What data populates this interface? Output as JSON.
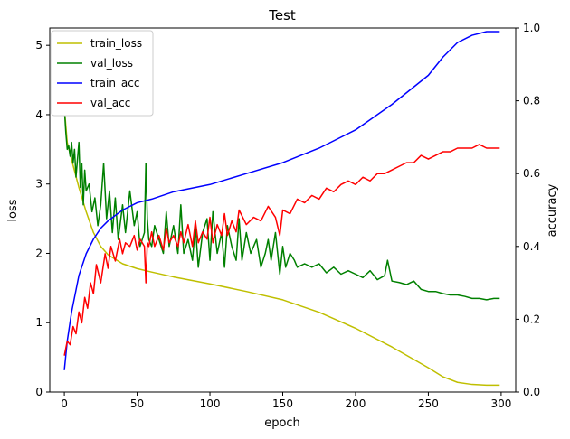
{
  "chart_data": {
    "type": "line",
    "title": "Test",
    "xlabel": "epoch",
    "ylabel": "loss",
    "y2label": "accuracy",
    "xlim": [
      -10,
      310
    ],
    "ylim": [
      0,
      5.25
    ],
    "y2lim": [
      0,
      1.0
    ],
    "xticks": [
      0,
      50,
      100,
      150,
      200,
      250,
      300
    ],
    "yticks": [
      0,
      1,
      2,
      3,
      4,
      5
    ],
    "y2ticks": [
      0.0,
      0.2,
      0.4,
      0.6,
      0.8,
      1.0
    ],
    "x_tick_labels": [
      "0",
      "50",
      "100",
      "150",
      "200",
      "250",
      "300"
    ],
    "y_tick_labels": [
      "0",
      "1",
      "2",
      "3",
      "4",
      "5"
    ],
    "y2_tick_labels": [
      "0.0",
      "0.2",
      "0.4",
      "0.6",
      "0.8",
      "1.0"
    ],
    "grid": false,
    "legend_position": "top-left",
    "series": [
      {
        "name": "train_loss",
        "axis": "left",
        "color": "#bfbf00",
        "x": [
          0,
          2,
          5,
          10,
          15,
          20,
          25,
          30,
          40,
          50,
          60,
          75,
          100,
          125,
          150,
          175,
          200,
          225,
          250,
          260,
          270,
          280,
          290,
          299
        ],
        "values": [
          4.1,
          3.6,
          3.35,
          2.95,
          2.6,
          2.3,
          2.1,
          1.98,
          1.85,
          1.78,
          1.73,
          1.66,
          1.56,
          1.45,
          1.33,
          1.15,
          0.92,
          0.65,
          0.35,
          0.22,
          0.14,
          0.11,
          0.1,
          0.1
        ]
      },
      {
        "name": "val_loss",
        "axis": "left",
        "color": "#008000",
        "x": [
          0,
          1,
          2,
          3,
          4,
          5,
          6,
          7,
          8,
          9,
          10,
          11,
          12,
          13,
          14,
          15,
          17,
          19,
          21,
          23,
          25,
          27,
          29,
          31,
          33,
          35,
          37,
          40,
          42,
          45,
          48,
          50,
          52,
          55,
          56,
          57,
          58,
          60,
          62,
          65,
          68,
          70,
          72,
          75,
          78,
          80,
          82,
          85,
          88,
          90,
          92,
          95,
          98,
          100,
          102,
          105,
          108,
          110,
          112,
          115,
          118,
          120,
          122,
          125,
          128,
          130,
          132,
          135,
          138,
          140,
          142,
          145,
          148,
          150,
          152,
          155,
          158,
          160,
          165,
          170,
          175,
          180,
          185,
          190,
          195,
          200,
          205,
          210,
          215,
          220,
          222,
          225,
          230,
          235,
          240,
          245,
          250,
          255,
          260,
          265,
          270,
          275,
          280,
          285,
          290,
          295,
          299
        ],
        "values": [
          4.1,
          3.75,
          3.5,
          3.55,
          3.4,
          3.6,
          3.3,
          3.5,
          3.1,
          3.35,
          3.6,
          2.95,
          3.3,
          2.7,
          3.2,
          2.9,
          3.0,
          2.6,
          2.8,
          2.4,
          2.7,
          3.3,
          2.5,
          2.9,
          2.3,
          2.8,
          2.2,
          2.7,
          2.3,
          2.9,
          2.4,
          2.6,
          2.1,
          2.3,
          3.3,
          2.5,
          2.2,
          2.1,
          2.4,
          2.2,
          2.0,
          2.6,
          2.1,
          2.4,
          2.0,
          2.7,
          2.0,
          2.2,
          1.9,
          2.4,
          1.8,
          2.3,
          2.5,
          1.9,
          2.6,
          2.0,
          2.3,
          1.8,
          2.4,
          2.1,
          1.9,
          2.5,
          1.9,
          2.3,
          2.0,
          2.1,
          2.2,
          1.8,
          2.0,
          2.2,
          1.9,
          2.3,
          1.7,
          2.1,
          1.8,
          2.0,
          1.9,
          1.8,
          1.85,
          1.8,
          1.85,
          1.72,
          1.8,
          1.7,
          1.75,
          1.7,
          1.65,
          1.75,
          1.62,
          1.68,
          1.9,
          1.6,
          1.58,
          1.55,
          1.6,
          1.48,
          1.45,
          1.45,
          1.42,
          1.4,
          1.4,
          1.38,
          1.35,
          1.35,
          1.33,
          1.35,
          1.35
        ]
      },
      {
        "name": "train_acc",
        "axis": "right",
        "color": "#0000ff",
        "x": [
          0,
          2,
          5,
          10,
          15,
          20,
          25,
          30,
          40,
          50,
          60,
          75,
          100,
          125,
          150,
          175,
          200,
          225,
          250,
          260,
          270,
          280,
          290,
          299
        ],
        "values": [
          0.06,
          0.14,
          0.22,
          0.32,
          0.38,
          0.42,
          0.45,
          0.47,
          0.5,
          0.52,
          0.53,
          0.55,
          0.57,
          0.6,
          0.63,
          0.67,
          0.72,
          0.79,
          0.87,
          0.92,
          0.96,
          0.98,
          0.99,
          0.99
        ]
      },
      {
        "name": "val_acc",
        "axis": "right",
        "color": "#ff0000",
        "x": [
          0,
          2,
          4,
          6,
          8,
          10,
          12,
          14,
          16,
          18,
          20,
          22,
          25,
          28,
          30,
          32,
          35,
          38,
          40,
          42,
          45,
          48,
          50,
          52,
          55,
          56,
          57,
          58,
          60,
          62,
          65,
          68,
          70,
          72,
          75,
          78,
          80,
          82,
          85,
          88,
          90,
          92,
          95,
          98,
          100,
          102,
          105,
          108,
          110,
          112,
          115,
          118,
          120,
          125,
          130,
          135,
          140,
          145,
          148,
          150,
          155,
          160,
          165,
          170,
          175,
          180,
          185,
          190,
          195,
          200,
          205,
          210,
          215,
          220,
          225,
          230,
          235,
          240,
          245,
          250,
          255,
          260,
          265,
          270,
          275,
          280,
          285,
          290,
          295,
          299
        ],
        "values": [
          0.1,
          0.14,
          0.13,
          0.18,
          0.16,
          0.22,
          0.19,
          0.26,
          0.23,
          0.3,
          0.27,
          0.35,
          0.3,
          0.38,
          0.34,
          0.4,
          0.36,
          0.42,
          0.38,
          0.41,
          0.4,
          0.43,
          0.39,
          0.42,
          0.4,
          0.3,
          0.41,
          0.4,
          0.44,
          0.4,
          0.43,
          0.39,
          0.45,
          0.41,
          0.43,
          0.4,
          0.44,
          0.41,
          0.46,
          0.4,
          0.47,
          0.41,
          0.44,
          0.42,
          0.48,
          0.41,
          0.46,
          0.43,
          0.49,
          0.43,
          0.47,
          0.44,
          0.5,
          0.46,
          0.48,
          0.47,
          0.51,
          0.48,
          0.43,
          0.5,
          0.49,
          0.53,
          0.52,
          0.54,
          0.53,
          0.56,
          0.55,
          0.57,
          0.58,
          0.57,
          0.59,
          0.58,
          0.6,
          0.6,
          0.61,
          0.62,
          0.63,
          0.63,
          0.65,
          0.64,
          0.65,
          0.66,
          0.66,
          0.67,
          0.67,
          0.67,
          0.68,
          0.67,
          0.67,
          0.67
        ]
      }
    ]
  }
}
